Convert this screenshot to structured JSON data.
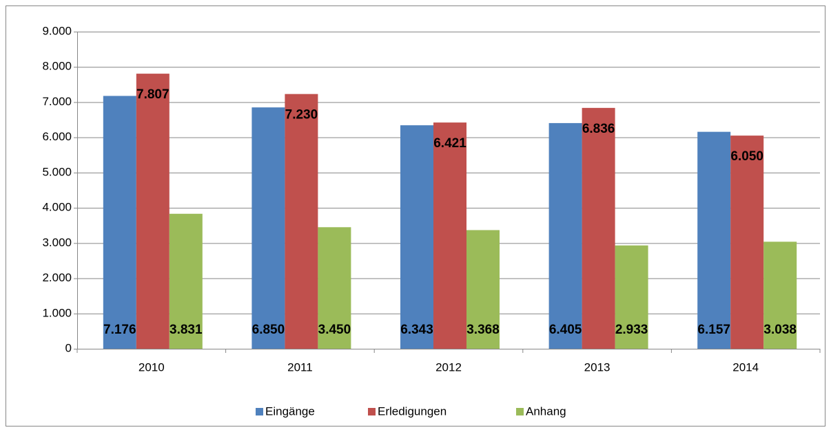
{
  "chart_data": {
    "type": "bar",
    "categories": [
      "2010",
      "2011",
      "2012",
      "2013",
      "2014"
    ],
    "series": [
      {
        "name": "Eingänge",
        "color": "#4f81bd",
        "values": [
          7176,
          6850,
          6343,
          6405,
          6157
        ],
        "value_labels": [
          "7.176",
          "6.850",
          "6.343",
          "6.405",
          "6.157"
        ]
      },
      {
        "name": "Erledigungen",
        "color": "#c0504d",
        "values": [
          7807,
          7230,
          6421,
          6836,
          6050
        ],
        "value_labels": [
          "7.807",
          "7.230",
          "6.421",
          "6.836",
          "6.050"
        ]
      },
      {
        "name": "Anhang",
        "color": "#9bbb59",
        "values": [
          3831,
          3450,
          3368,
          2933,
          3038
        ],
        "value_labels": [
          "3.831",
          "3.450",
          "3.368",
          "2.933",
          "3.038"
        ]
      }
    ],
    "ylim": [
      0,
      9000
    ],
    "yticks": [
      0,
      {
        "value": 1000,
        "label": "1.000"
      },
      {
        "value": 2000,
        "label": "2.000"
      },
      {
        "value": 3000,
        "label": "3.000"
      },
      {
        "value": 4000,
        "label": "4.000"
      },
      {
        "value": 5000,
        "label": "5.000"
      },
      {
        "value": 6000,
        "label": "6.000"
      },
      {
        "value": 7000,
        "label": "7.000"
      },
      {
        "value": 8000,
        "label": "8.000"
      },
      {
        "value": 9000,
        "label": "9.000"
      }
    ],
    "grid": true
  }
}
